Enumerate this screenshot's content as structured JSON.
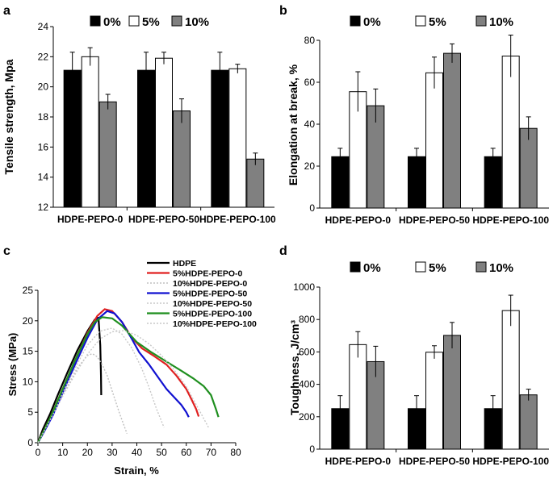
{
  "chart_data": [
    {
      "panel": "a",
      "type": "bar",
      "ylabel": "Tensile strength, Mpa",
      "ylim": [
        12,
        24
      ],
      "yticks": [
        12,
        14,
        16,
        18,
        20,
        22,
        24
      ],
      "categories": [
        "HDPE-PEPO-0",
        "HDPE-PEPO-50",
        "HDPE-PEPO-100"
      ],
      "legend": "top",
      "series": [
        {
          "name": "0%",
          "color": "#000000",
          "values": [
            21.1,
            21.1,
            21.1
          ],
          "errors": [
            1.2,
            1.2,
            1.2
          ]
        },
        {
          "name": "5%",
          "color": "#ffffff",
          "values": [
            22.0,
            21.9,
            21.2
          ],
          "errors": [
            0.6,
            0.4,
            0.3
          ]
        },
        {
          "name": "10%",
          "color": "#808080",
          "values": [
            19.0,
            18.4,
            15.2
          ],
          "errors": [
            0.5,
            0.8,
            0.4
          ]
        }
      ]
    },
    {
      "panel": "b",
      "type": "bar",
      "ylabel": "Elongation at break, %",
      "ylim": [
        0,
        80
      ],
      "yticks": [
        0,
        20,
        40,
        60,
        80
      ],
      "categories": [
        "HDPE-PEPO-0",
        "HDPE-PEPO-50",
        "HDPE-PEPO-100"
      ],
      "legend": "top",
      "series": [
        {
          "name": "0%",
          "color": "#000000",
          "values": [
            24.5,
            24.5,
            24.5
          ],
          "errors": [
            4,
            4,
            4
          ]
        },
        {
          "name": "5%",
          "color": "#ffffff",
          "values": [
            55.5,
            64.5,
            72.5
          ],
          "errors": [
            9.5,
            7.5,
            10
          ]
        },
        {
          "name": "10%",
          "color": "#808080",
          "values": [
            48.8,
            73.8,
            38.0
          ],
          "errors": [
            8,
            4.5,
            5.5
          ]
        }
      ]
    },
    {
      "panel": "c",
      "type": "line",
      "xlabel": "Strain, %",
      "ylabel": "Stress (MPa)",
      "xlim": [
        0,
        80
      ],
      "ylim": [
        0,
        25
      ],
      "xticks": [
        0,
        10,
        20,
        30,
        40,
        50,
        60,
        70,
        80
      ],
      "yticks": [
        0,
        5,
        10,
        15,
        20,
        25
      ],
      "legend": "top-right",
      "series": [
        {
          "name": "HDPE",
          "color": "#000000",
          "dash": "solid",
          "x": [
            0,
            2,
            5,
            8,
            12,
            16,
            20,
            23,
            24.5,
            25.2,
            25.5,
            25.6
          ],
          "y": [
            0,
            2.2,
            4.8,
            7.8,
            11.6,
            15.2,
            18.3,
            20.2,
            20.5,
            16,
            11,
            7.8
          ]
        },
        {
          "name": "5%HDPE-PEPO-0",
          "color": "#e02020",
          "dash": "solid",
          "x": [
            0,
            3,
            6,
            10,
            15,
            20,
            24,
            27,
            30,
            34,
            38,
            42,
            47,
            52,
            56,
            60,
            62,
            64,
            65
          ],
          "y": [
            0,
            2.5,
            5,
            8.8,
            13.5,
            18,
            20.8,
            21.9,
            21.6,
            19.8,
            17.2,
            15.5,
            14.2,
            12.8,
            11,
            8.8,
            7.2,
            5.5,
            4.3
          ]
        },
        {
          "name": "10%HDPE-PEPO-0",
          "color": "#c0c0c0",
          "dash": "dotted",
          "x": [
            0,
            4,
            8,
            12,
            16,
            20,
            22,
            24,
            26,
            28,
            30,
            33,
            36
          ],
          "y": [
            0,
            3,
            6.2,
            9.3,
            12.3,
            14.3,
            14.6,
            14.1,
            12.8,
            11,
            8.5,
            4.8,
            1.5
          ]
        },
        {
          "name": "5%HDPE-PEPO-50",
          "color": "#1010d0",
          "dash": "solid",
          "x": [
            0,
            3,
            6,
            10,
            15,
            20,
            24,
            28,
            31,
            34,
            38,
            41,
            45,
            49,
            52,
            55,
            58,
            60,
            61
          ],
          "y": [
            0,
            2.2,
            4.5,
            8.2,
            12.8,
            17.2,
            20.2,
            21.6,
            21.2,
            19.8,
            17,
            14.8,
            12.8,
            10.5,
            8.8,
            7.5,
            6.2,
            5,
            4.2
          ]
        },
        {
          "name": "10%HDPE-PEPO-50",
          "color": "#c8c8c8",
          "dash": "dotted",
          "x": [
            0,
            4,
            8,
            12,
            16,
            20,
            25,
            30,
            34,
            38,
            42,
            45,
            48,
            51
          ],
          "y": [
            0,
            3.3,
            6.5,
            9.8,
            13,
            16,
            18.3,
            18.8,
            17.8,
            15.5,
            12.2,
            9,
            5.5,
            2.5
          ]
        },
        {
          "name": "5%HDPE-PEPO-100",
          "color": "#1f8f1f",
          "dash": "solid",
          "x": [
            0,
            3,
            6,
            10,
            15,
            20,
            23,
            26,
            30,
            34,
            40,
            46,
            52,
            58,
            63,
            67,
            70,
            72,
            73
          ],
          "y": [
            0,
            2.5,
            5,
            8.8,
            13.5,
            17.8,
            19.8,
            20.6,
            20.4,
            19.2,
            16.5,
            14.8,
            13.3,
            11.8,
            10.5,
            9.3,
            7.8,
            5.5,
            4.2
          ]
        },
        {
          "name": "10%HDPE-PEPO-100",
          "color": "#c8c8c8",
          "dash": "dotted",
          "x": [
            0,
            5,
            10,
            15,
            20,
            25,
            30,
            35,
            40,
            45,
            50,
            55,
            60,
            65,
            69
          ],
          "y": [
            0,
            3.8,
            7.6,
            11.2,
            14.5,
            17,
            18.2,
            18.4,
            17.6,
            16.2,
            14.3,
            12,
            9.2,
            5.5,
            2.5
          ]
        }
      ]
    },
    {
      "panel": "d",
      "type": "bar",
      "ylabel": "Toughness, J/cm³",
      "ylim": [
        0,
        1000
      ],
      "yticks": [
        0,
        200,
        400,
        600,
        800,
        1000
      ],
      "categories": [
        "HDPE-PEPO-0",
        "HDPE-PEPO-50",
        "HDPE-PEPO-100"
      ],
      "legend": "top",
      "series": [
        {
          "name": "0%",
          "color": "#000000",
          "values": [
            250,
            250,
            250
          ],
          "errors": [
            80,
            80,
            80
          ]
        },
        {
          "name": "5%",
          "color": "#ffffff",
          "values": [
            645,
            598,
            855
          ],
          "errors": [
            80,
            40,
            95
          ]
        },
        {
          "name": "10%",
          "color": "#808080",
          "values": [
            540,
            702,
            335
          ],
          "errors": [
            95,
            80,
            35
          ]
        }
      ]
    }
  ]
}
